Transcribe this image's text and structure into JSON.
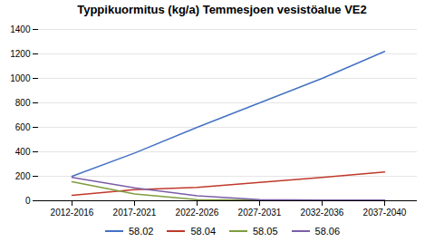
{
  "chart_data": {
    "type": "line",
    "title": "Typpikuormitus (kg/a) Temmesjoen vesistöalue VE2",
    "categories": [
      "2012-2016",
      "2017-2021",
      "2022-2026",
      "2027-2031",
      "2032-2036",
      "2037-2040"
    ],
    "series": [
      {
        "name": "58.02",
        "color": "#4472C4",
        "values": [
          200,
          390,
          600,
          800,
          1000,
          1220
        ]
      },
      {
        "name": "58.04",
        "color": "#C0392B",
        "values": [
          45,
          90,
          110,
          150,
          190,
          235
        ]
      },
      {
        "name": "58.05",
        "color": "#7F9C3E",
        "values": [
          155,
          55,
          10,
          5,
          5,
          5
        ]
      },
      {
        "name": "58.06",
        "color": "#7B5EA7",
        "values": [
          190,
          105,
          40,
          10,
          5,
          5
        ]
      }
    ],
    "ylim": [
      0,
      1400
    ],
    "yticks": [
      0,
      200,
      400,
      600,
      800,
      1000,
      1200,
      1400
    ],
    "grid": true,
    "legend": "bottom"
  }
}
